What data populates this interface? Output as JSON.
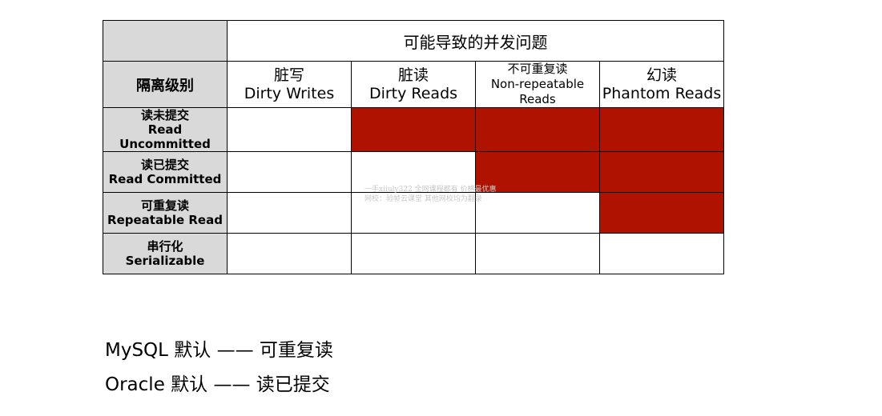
{
  "table": {
    "corner": "",
    "top_header": "可能导致的并发问题",
    "level_header": "隔离级别",
    "columns": [
      {
        "zh": "脏写",
        "en": "Dirty Writes"
      },
      {
        "zh": "脏读",
        "en": "Dirty Reads"
      },
      {
        "zh": "不可重复读",
        "en": "Non-repeatable Reads"
      },
      {
        "zh": "幻读",
        "en": "Phantom Reads"
      }
    ],
    "rows": [
      {
        "zh": "读未提交",
        "en1": "Read",
        "en2": "Uncommitted",
        "cells": [
          false,
          true,
          true,
          true
        ]
      },
      {
        "zh": "读已提交",
        "en1": "Read Committed",
        "en2": "",
        "cells": [
          false,
          false,
          true,
          true
        ]
      },
      {
        "zh": "可重复读",
        "en1": "Repeatable Read",
        "en2": "",
        "cells": [
          false,
          false,
          false,
          true
        ]
      },
      {
        "zh": "串行化",
        "en1": "Serializable",
        "en2": "",
        "cells": [
          false,
          false,
          false,
          false
        ]
      }
    ],
    "colors": {
      "problem": "#b01200",
      "header_bg": "#d9d9d9"
    }
  },
  "watermark": {
    "line1": "一手xiiuly322 全网课程都有 价格最优惠",
    "line2": "网校：验帧云课堂 其他网校均为翻录"
  },
  "notes": [
    "MySQL 默认 —— 可重复读",
    "Oracle 默认 —— 读已提交"
  ]
}
